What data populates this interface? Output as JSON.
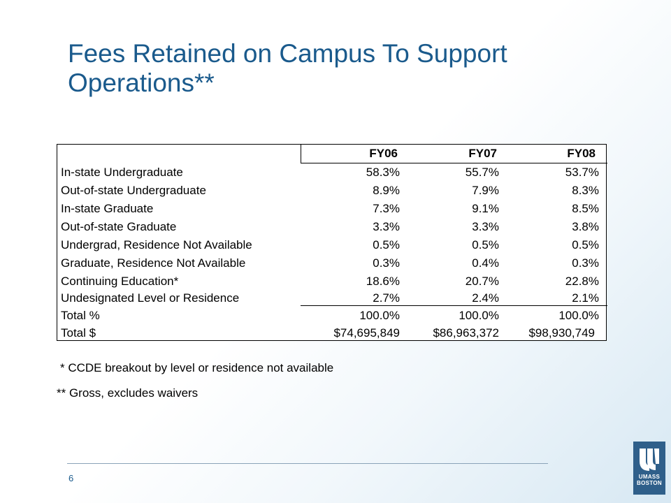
{
  "slide": {
    "title": "Fees Retained on Campus To Support Operations**",
    "page_number": "6"
  },
  "table": {
    "columns": [
      "FY06",
      "FY07",
      "FY08"
    ],
    "rows": [
      {
        "label": "In-state Undergraduate",
        "values": [
          "58.3%",
          "55.7%",
          "53.7%"
        ]
      },
      {
        "label": "Out-of-state Undergraduate",
        "values": [
          "8.9%",
          "7.9%",
          "8.3%"
        ]
      },
      {
        "label": "In-state Graduate",
        "values": [
          "7.3%",
          "9.1%",
          "8.5%"
        ]
      },
      {
        "label": "Out-of-state Graduate",
        "values": [
          "3.3%",
          "3.3%",
          "3.8%"
        ]
      },
      {
        "label": "Undergrad, Residence Not Available",
        "values": [
          "0.5%",
          "0.5%",
          "0.5%"
        ]
      },
      {
        "label": "Graduate, Residence Not Available",
        "values": [
          "0.3%",
          "0.4%",
          "0.3%"
        ]
      },
      {
        "label": "Continuing Education*",
        "values": [
          "18.6%",
          "20.7%",
          "22.8%"
        ]
      },
      {
        "label": "Undesignated Level or Residence",
        "values": [
          "2.7%",
          "2.4%",
          "2.1%"
        ]
      },
      {
        "label": "Total %",
        "values": [
          "100.0%",
          "100.0%",
          "100.0%"
        ]
      },
      {
        "label": "Total $",
        "values": [
          "$74,695,849",
          "$86,963,372",
          "$98,930,749"
        ]
      }
    ]
  },
  "footnotes": {
    "note1": "*  CCDE breakout by level or residence not available",
    "note2": "** Gross, excludes waivers"
  },
  "logo": {
    "line1": "UMASS",
    "line2": "BOSTON",
    "color": "#2f5f8a"
  }
}
